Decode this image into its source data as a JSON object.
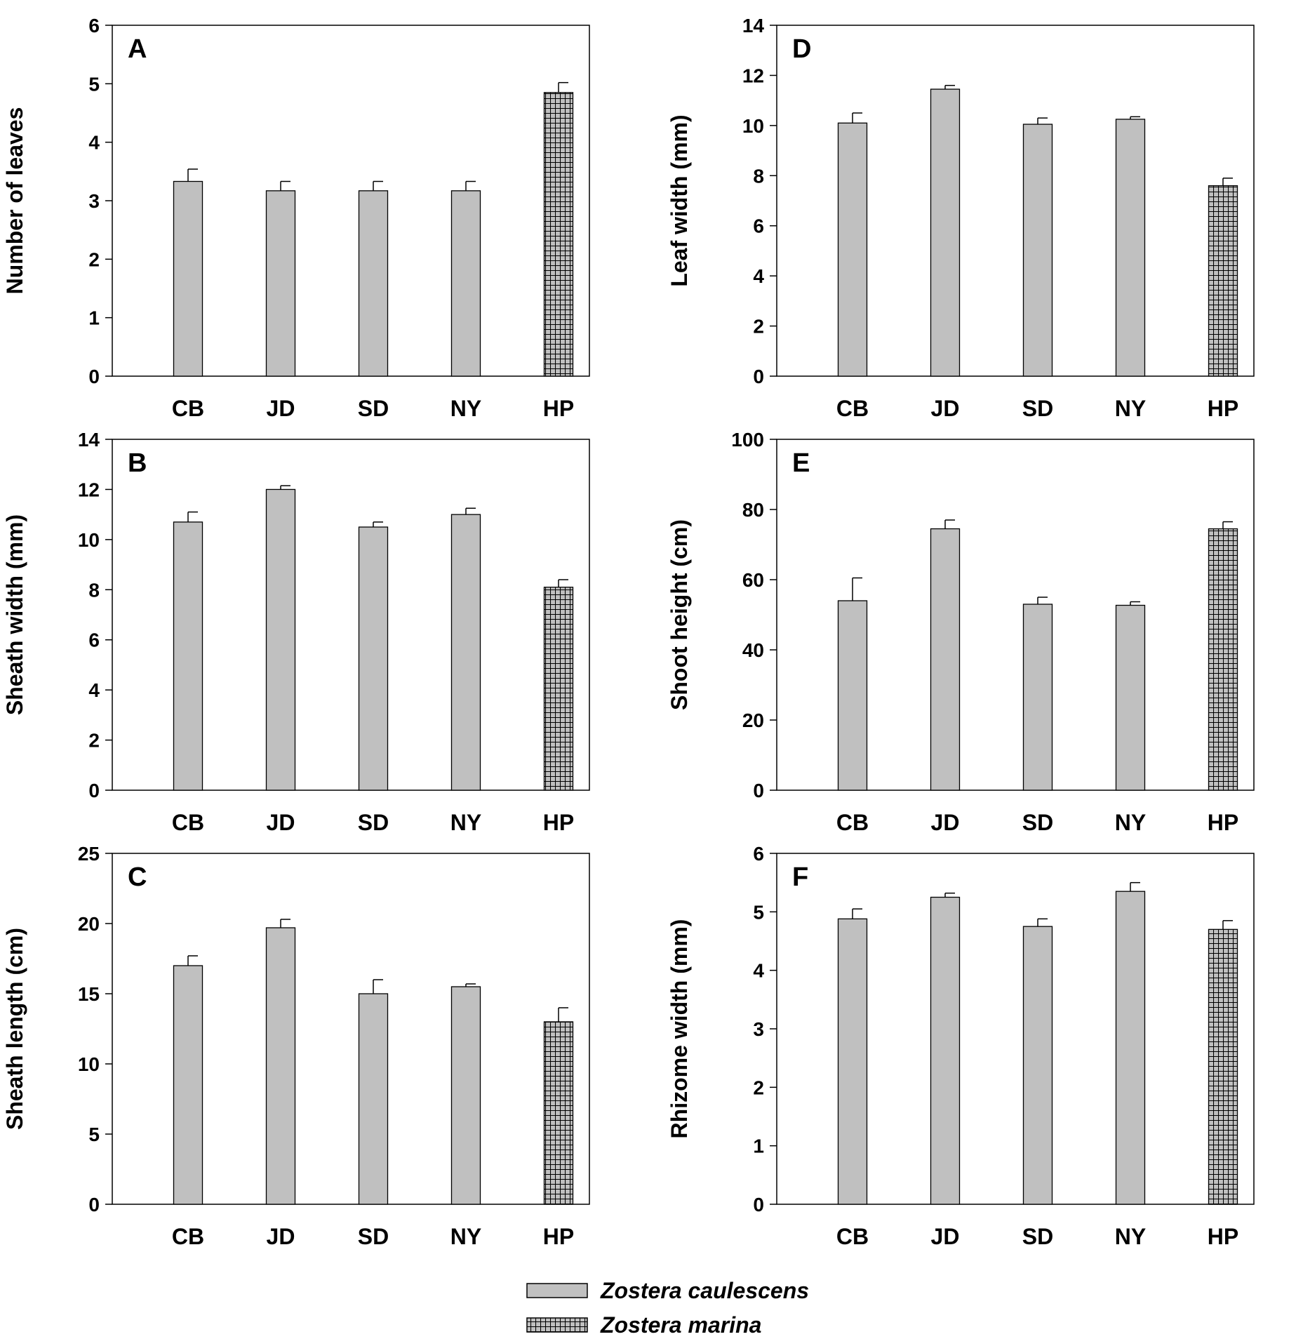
{
  "figure": {
    "legend": [
      {
        "name": "Zostera caulescens",
        "fill": "solid",
        "color": "#c0c0c0"
      },
      {
        "name": "Zostera marina",
        "fill": "crosshatch",
        "color": "#c0c0c0"
      }
    ]
  },
  "colors": {
    "bar": "#c0c0c0",
    "axis": "#000000",
    "hatch": "#000000"
  },
  "chart_data": [
    {
      "panel": "A",
      "type": "bar",
      "ylabel": "Number of leaves",
      "categories": [
        "CB",
        "JD",
        "SD",
        "NY",
        "HP"
      ],
      "values": [
        3.33,
        3.17,
        3.17,
        3.17,
        4.85
      ],
      "errors": [
        0.21,
        0.16,
        0.16,
        0.16,
        0.17
      ],
      "species": [
        "Zostera caulescens",
        "Zostera caulescens",
        "Zostera caulescens",
        "Zostera caulescens",
        "Zostera marina"
      ],
      "ylim": [
        0,
        6
      ],
      "yticks": [
        0,
        1,
        2,
        3,
        4,
        5,
        6
      ],
      "column": "left"
    },
    {
      "panel": "B",
      "type": "bar",
      "ylabel": "Sheath width (mm)",
      "categories": [
        "CB",
        "JD",
        "SD",
        "NY",
        "HP"
      ],
      "values": [
        10.7,
        12.0,
        10.5,
        11.0,
        8.1
      ],
      "errors": [
        0.4,
        0.15,
        0.2,
        0.25,
        0.3
      ],
      "species": [
        "Zostera caulescens",
        "Zostera caulescens",
        "Zostera caulescens",
        "Zostera caulescens",
        "Zostera marina"
      ],
      "ylim": [
        0,
        14
      ],
      "yticks": [
        0,
        2,
        4,
        6,
        8,
        10,
        12,
        14
      ],
      "column": "left"
    },
    {
      "panel": "C",
      "type": "bar",
      "ylabel": "Sheath length (cm)",
      "categories": [
        "CB",
        "JD",
        "SD",
        "NY",
        "HP"
      ],
      "values": [
        17.0,
        19.7,
        15.0,
        15.5,
        13.0
      ],
      "errors": [
        0.7,
        0.6,
        1.0,
        0.2,
        1.0
      ],
      "species": [
        "Zostera caulescens",
        "Zostera caulescens",
        "Zostera caulescens",
        "Zostera caulescens",
        "Zostera marina"
      ],
      "ylim": [
        0,
        25
      ],
      "yticks": [
        0,
        5,
        10,
        15,
        20,
        25
      ],
      "column": "left"
    },
    {
      "panel": "D",
      "type": "bar",
      "ylabel": "Leaf width (mm)",
      "categories": [
        "CB",
        "JD",
        "SD",
        "NY",
        "HP"
      ],
      "values": [
        10.1,
        11.45,
        10.05,
        10.25,
        7.6
      ],
      "errors": [
        0.4,
        0.15,
        0.25,
        0.1,
        0.3
      ],
      "species": [
        "Zostera caulescens",
        "Zostera caulescens",
        "Zostera caulescens",
        "Zostera caulescens",
        "Zostera marina"
      ],
      "ylim": [
        0,
        14
      ],
      "yticks": [
        0,
        2,
        4,
        6,
        8,
        10,
        12,
        14
      ],
      "column": "right"
    },
    {
      "panel": "E",
      "type": "bar",
      "ylabel": "Shoot height (cm)",
      "categories": [
        "CB",
        "JD",
        "SD",
        "NY",
        "HP"
      ],
      "values": [
        54,
        74.5,
        53,
        52.7,
        74.5
      ],
      "errors": [
        6.5,
        2.5,
        2,
        1,
        2
      ],
      "species": [
        "Zostera caulescens",
        "Zostera caulescens",
        "Zostera caulescens",
        "Zostera caulescens",
        "Zostera marina"
      ],
      "ylim": [
        0,
        100
      ],
      "yticks": [
        0,
        20,
        40,
        60,
        80,
        100
      ],
      "column": "right"
    },
    {
      "panel": "F",
      "type": "bar",
      "ylabel": "Rhizome width (mm)",
      "categories": [
        "CB",
        "JD",
        "SD",
        "NY",
        "HP"
      ],
      "values": [
        4.88,
        5.25,
        4.75,
        5.35,
        4.7
      ],
      "errors": [
        0.17,
        0.07,
        0.13,
        0.15,
        0.15
      ],
      "species": [
        "Zostera caulescens",
        "Zostera caulescens",
        "Zostera caulescens",
        "Zostera caulescens",
        "Zostera marina"
      ],
      "ylim": [
        0,
        6
      ],
      "yticks": [
        0,
        1,
        2,
        3,
        4,
        5,
        6
      ],
      "column": "right"
    }
  ]
}
